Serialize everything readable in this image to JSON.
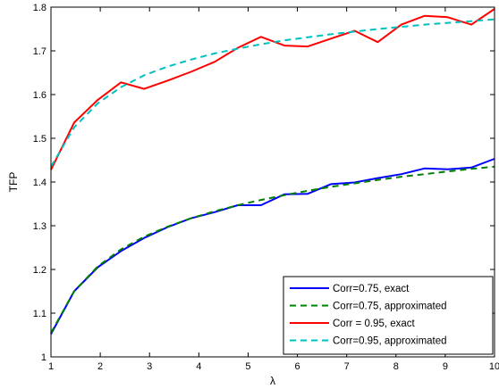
{
  "chart_data": {
    "type": "line",
    "xlabel": "λ",
    "ylabel": "TFP",
    "xlim": [
      1,
      10
    ],
    "ylim": [
      1,
      1.8
    ],
    "grid": false,
    "legend_position": "bottom-right",
    "x_ticks": [
      1,
      2,
      3,
      4,
      5,
      6,
      7,
      8,
      9,
      10
    ],
    "x_tick_labels": [
      "1",
      "2",
      "3",
      "4",
      "5",
      "6",
      "7",
      "8",
      "9",
      "10"
    ],
    "y_ticks": [
      1,
      1.1,
      1.2,
      1.3,
      1.4,
      1.5,
      1.6,
      1.7,
      1.8
    ],
    "y_tick_labels": [
      "1",
      "1.1",
      "1.2",
      "1.3",
      "1.4",
      "1.5",
      "1.6",
      "1.7",
      "1.8"
    ],
    "series": [
      {
        "name": "Corr=0.75, exact",
        "color": "#0000ff",
        "dash": "solid",
        "x": [
          1.0,
          1.47,
          1.95,
          2.42,
          2.89,
          3.37,
          3.84,
          4.32,
          4.79,
          5.26,
          5.74,
          6.21,
          6.68,
          7.16,
          7.63,
          8.11,
          8.58,
          9.05,
          9.53,
          10.0
        ],
        "y": [
          1.052,
          1.15,
          1.205,
          1.242,
          1.272,
          1.297,
          1.317,
          1.331,
          1.347,
          1.347,
          1.372,
          1.373,
          1.395,
          1.399,
          1.409,
          1.418,
          1.431,
          1.429,
          1.433,
          1.453
        ]
      },
      {
        "name": "Corr=0.75, approximated",
        "color": "#008000",
        "dash": "dashed",
        "x": [
          1.0,
          1.47,
          1.95,
          2.42,
          2.89,
          3.37,
          3.84,
          4.32,
          4.79,
          5.26,
          5.74,
          6.21,
          6.68,
          7.16,
          7.63,
          8.11,
          8.58,
          9.05,
          9.53,
          10.0
        ],
        "y": [
          1.055,
          1.15,
          1.207,
          1.246,
          1.275,
          1.298,
          1.317,
          1.333,
          1.347,
          1.359,
          1.37,
          1.38,
          1.389,
          1.397,
          1.405,
          1.412,
          1.418,
          1.424,
          1.43,
          1.435
        ]
      },
      {
        "name": "Corr = 0.95, exact",
        "color": "#ff0000",
        "dash": "solid",
        "x": [
          1.0,
          1.47,
          1.95,
          2.42,
          2.89,
          3.37,
          3.84,
          4.32,
          4.79,
          5.26,
          5.74,
          6.21,
          6.68,
          7.16,
          7.63,
          8.11,
          8.58,
          9.05,
          9.53,
          10.0
        ],
        "y": [
          1.428,
          1.536,
          1.588,
          1.628,
          1.613,
          1.632,
          1.652,
          1.675,
          1.707,
          1.732,
          1.712,
          1.71,
          1.728,
          1.746,
          1.72,
          1.76,
          1.78,
          1.777,
          1.76,
          1.796
        ]
      },
      {
        "name": "Corr=0.95, approximated",
        "color": "#00bfbf",
        "dash": "dashed",
        "x": [
          1.0,
          1.47,
          1.95,
          2.42,
          2.89,
          3.37,
          3.84,
          4.32,
          4.79,
          5.26,
          5.74,
          6.21,
          6.68,
          7.16,
          7.63,
          8.11,
          8.58,
          9.05,
          9.53,
          10.0
        ],
        "y": [
          1.435,
          1.525,
          1.58,
          1.617,
          1.644,
          1.664,
          1.68,
          1.694,
          1.705,
          1.715,
          1.724,
          1.731,
          1.738,
          1.744,
          1.75,
          1.755,
          1.76,
          1.764,
          1.768,
          1.772
        ]
      }
    ]
  }
}
